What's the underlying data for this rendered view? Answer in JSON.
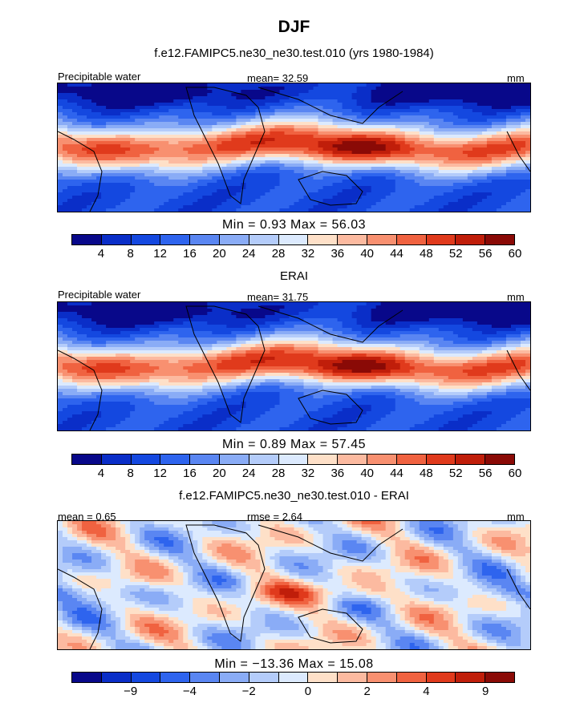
{
  "title": "DJF",
  "colors": {
    "palette": [
      "#08088a",
      "#0a2ec8",
      "#1448e0",
      "#2e64ee",
      "#5a86f2",
      "#8aacf6",
      "#b4ccfa",
      "#dceafe",
      "#fee0c8",
      "#fcbaa0",
      "#f89070",
      "#f06240",
      "#e03a1c",
      "#c01e0a",
      "#8a0a06"
    ],
    "diff_palette": [
      "#08088a",
      "#0a2ec8",
      "#1448e0",
      "#2e64ee",
      "#5a86f2",
      "#8aacf6",
      "#b4ccfa",
      "#dceafe",
      "#fee0c8",
      "#fcbaa0",
      "#f89070",
      "#f06240",
      "#e03a1c",
      "#c01e0a",
      "#8a0a06"
    ]
  },
  "panels": [
    {
      "id": "model",
      "subtitle": "f.e12.FAMIPC5.ne30_ne30.test.010 (yrs 1980-1984)",
      "left_label": "Precipitable water",
      "center_label": "mean=  32.59",
      "right_label": "mm",
      "min_max": "Min =   0.93 Max =  56.03",
      "colorbar_ticks": [
        "4",
        "8",
        "12",
        "16",
        "20",
        "24",
        "28",
        "32",
        "36",
        "40",
        "44",
        "48",
        "52",
        "56",
        "60"
      ]
    },
    {
      "id": "obs",
      "subtitle": "ERAI",
      "left_label": "Precipitable water",
      "center_label": "mean=  31.75",
      "right_label": "mm",
      "min_max": "Min =   0.89 Max =  57.45",
      "colorbar_ticks": [
        "4",
        "8",
        "12",
        "16",
        "20",
        "24",
        "28",
        "32",
        "36",
        "40",
        "44",
        "48",
        "52",
        "56",
        "60"
      ]
    },
    {
      "id": "diff",
      "subtitle": "f.e12.FAMIPC5.ne30_ne30.test.010 - ERAI",
      "left_label": "mean =   0.65",
      "center_label": "rmse =   2.64",
      "right_label": "mm",
      "min_max": "Min = −13.36 Max =  15.08",
      "colorbar_ticks": [
        "−9",
        "−4",
        "−2",
        "0",
        "2",
        "4",
        "9"
      ]
    }
  ],
  "chart_data": [
    {
      "type": "heatmap",
      "title": "f.e12.FAMIPC5.ne30_ne30.test.010 (yrs 1980-1984)",
      "variable": "Precipitable water",
      "units": "mm",
      "mean": 32.59,
      "min": 0.93,
      "max": 56.03,
      "levels": [
        4,
        8,
        12,
        16,
        20,
        24,
        28,
        32,
        36,
        40,
        44,
        48,
        52,
        56,
        60
      ]
    },
    {
      "type": "heatmap",
      "title": "ERAI",
      "variable": "Precipitable water",
      "units": "mm",
      "mean": 31.75,
      "min": 0.89,
      "max": 57.45,
      "levels": [
        4,
        8,
        12,
        16,
        20,
        24,
        28,
        32,
        36,
        40,
        44,
        48,
        52,
        56,
        60
      ]
    },
    {
      "type": "heatmap",
      "title": "f.e12.FAMIPC5.ne30_ne30.test.010 - ERAI",
      "units": "mm",
      "mean": 0.65,
      "rmse": 2.64,
      "min": -13.36,
      "max": 15.08,
      "levels": [
        -9,
        -4,
        -2,
        0,
        2,
        4,
        9
      ]
    }
  ]
}
